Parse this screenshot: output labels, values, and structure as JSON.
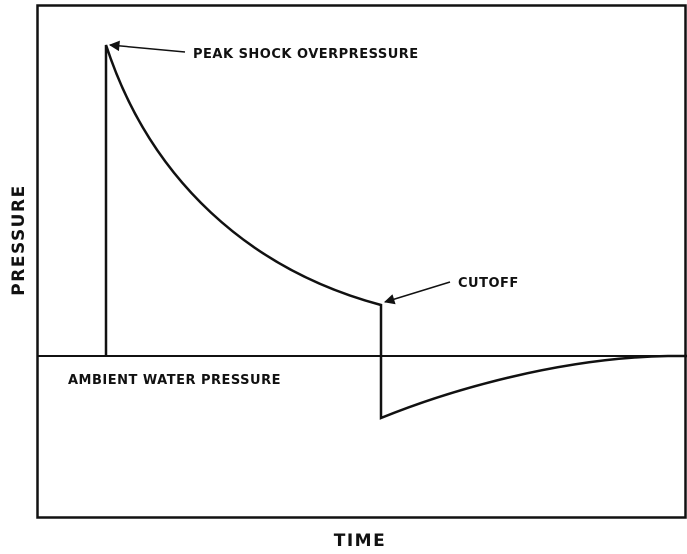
{
  "labels": {
    "peak": "PEAK SHOCK OVERPRESSURE",
    "cutoff": "CUTOFF",
    "ambient": "AMBIENT WATER PRESSURE",
    "y_axis": "PRESSURE",
    "x_axis": "TIME"
  }
}
